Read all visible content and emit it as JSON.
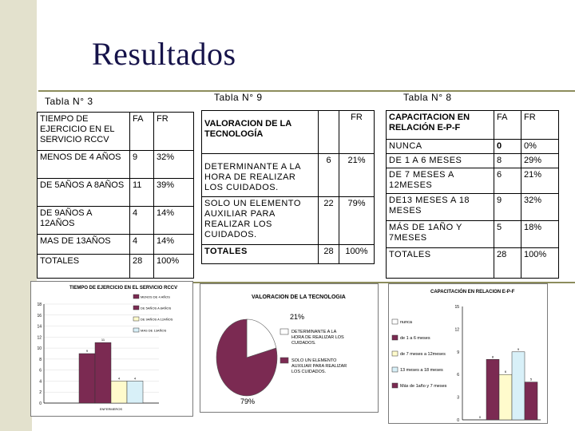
{
  "slide": {
    "title": "Resultados",
    "colors": {
      "title": "#16134a",
      "accent_bar": "#e3e1cd",
      "rule": "#8c8c5c",
      "maroon": "#7b2a52",
      "cream": "#fffbcc",
      "light_blue": "#d8f0f8"
    }
  },
  "table3": {
    "caption": "Tabla N° 3",
    "header": [
      "TIEMPO DE EJERCICIO EN EL SERVICIO RCCV",
      "FA",
      "FR"
    ],
    "rows": [
      [
        "MENOS DE 4 AÑOS",
        "9",
        "32%"
      ],
      [
        "DE 5AÑOS A 8AÑOS",
        "11",
        "39%"
      ],
      [
        "DE 9AÑOS A 12AÑOS",
        "4",
        "14%"
      ],
      [
        "MAS DE 13AÑOS",
        "4",
        "14%"
      ],
      [
        "TOTALES",
        "28",
        "100%"
      ]
    ]
  },
  "table9": {
    "caption": "Tabla N° 9",
    "header": [
      "VALORACION DE LA TECNOLOGÍA",
      "",
      "FR"
    ],
    "rows": [
      [
        "DETERMINANTE A LA HORA DE REALIZAR LOS CUIDADOS.",
        "6",
        "21%"
      ],
      [
        "SOLO UN ELEMENTO AUXILIAR PARA REALIZAR LOS CUIDADOS.",
        "22",
        "79%"
      ],
      [
        "TOTALES",
        "28",
        "100%"
      ]
    ]
  },
  "table8": {
    "caption": "Tabla N° 8",
    "header": [
      "CAPACITACION EN RELACIÓN E-P-F",
      "FA",
      "FR"
    ],
    "rows": [
      [
        "NUNCA",
        "0",
        "0%"
      ],
      [
        "DE 1 A 6 MESES",
        "8",
        "29%"
      ],
      [
        "DE 7 MESES A 12MESES",
        "6",
        "21%"
      ],
      [
        "DE13 MESES A 18 MESES",
        "9",
        "32%"
      ],
      [
        "MÁS DE 1AÑO Y 7MESES",
        "5",
        "18%"
      ],
      [
        "TOTALES",
        "28",
        "100%"
      ]
    ]
  },
  "chart1": {
    "title": "TIEMPO DE EJERCICIO EN EL SERVICIO RCCV",
    "xlabel": "ENFERMEROS",
    "legend": [
      "MENOS DE 4 AÑOS",
      "DE 5AÑOS A 8AÑOS",
      "DE 9AÑOS A 12AÑOS",
      "MAS DE 13AÑOS"
    ],
    "y_ticks": [
      "0",
      "2",
      "4",
      "6",
      "8",
      "10",
      "12",
      "14",
      "16",
      "18"
    ],
    "ylim": [
      0,
      18
    ]
  },
  "chart2": {
    "title": "VALORACION DE LA TECNOLOGIA",
    "slice_labels": [
      "21%",
      "79%"
    ],
    "legend": [
      "DETERMINANTE A LA HORA DE REALIZAR LOS CUIDADOS.",
      "SOLO UN ELEMENTO AUXILIAR PARA REALIZAR LOS CUIDADOS."
    ]
  },
  "chart3": {
    "title": "CAPACITACIÓN EN RELACION E-P-F",
    "legend": [
      "nunca",
      "de 1 a 6 meses",
      "de 7 meses a 12meses",
      "13 meses a 18 meses",
      "Más de 1año y 7 meses"
    ],
    "y_ticks": [
      "0",
      "3",
      "6",
      "9",
      "12",
      "15"
    ],
    "ylim": [
      0,
      15
    ]
  },
  "chart_data": [
    {
      "type": "bar",
      "title": "TIEMPO DE EJERCICIO EN EL SERVICIO RCCV",
      "xlabel": "ENFERMEROS",
      "categories": [
        "ENFERMEROS"
      ],
      "series": [
        {
          "name": "MENOS DE 4 AÑOS",
          "values": [
            9
          ]
        },
        {
          "name": "DE 5AÑOS A 8AÑOS",
          "values": [
            11
          ]
        },
        {
          "name": "DE 9AÑOS A 12AÑOS",
          "values": [
            4
          ]
        },
        {
          "name": "MAS DE 13AÑOS",
          "values": [
            4
          ]
        }
      ],
      "ylim": [
        0,
        18
      ],
      "legend_position": "right"
    },
    {
      "type": "pie",
      "title": "VALORACION DE LA TECNOLOGIA",
      "categories": [
        "DETERMINANTE A LA HORA DE REALIZAR LOS CUIDADOS.",
        "SOLO UN ELEMENTO AUXILIAR PARA REALIZAR LOS CUIDADOS."
      ],
      "values": [
        21,
        79
      ],
      "legend_position": "right"
    },
    {
      "type": "bar",
      "title": "CAPACITACIÓN EN RELACION E-P-F",
      "categories": [
        ""
      ],
      "series": [
        {
          "name": "nunca",
          "values": [
            0
          ]
        },
        {
          "name": "de 1 a 6 meses",
          "values": [
            8
          ]
        },
        {
          "name": "de 7 meses a 12meses",
          "values": [
            6
          ]
        },
        {
          "name": "13 meses a 18 meses",
          "values": [
            9
          ]
        },
        {
          "name": "Más de 1año y 7 meses",
          "values": [
            5
          ]
        }
      ],
      "ylim": [
        0,
        15
      ],
      "legend_position": "left"
    }
  ]
}
